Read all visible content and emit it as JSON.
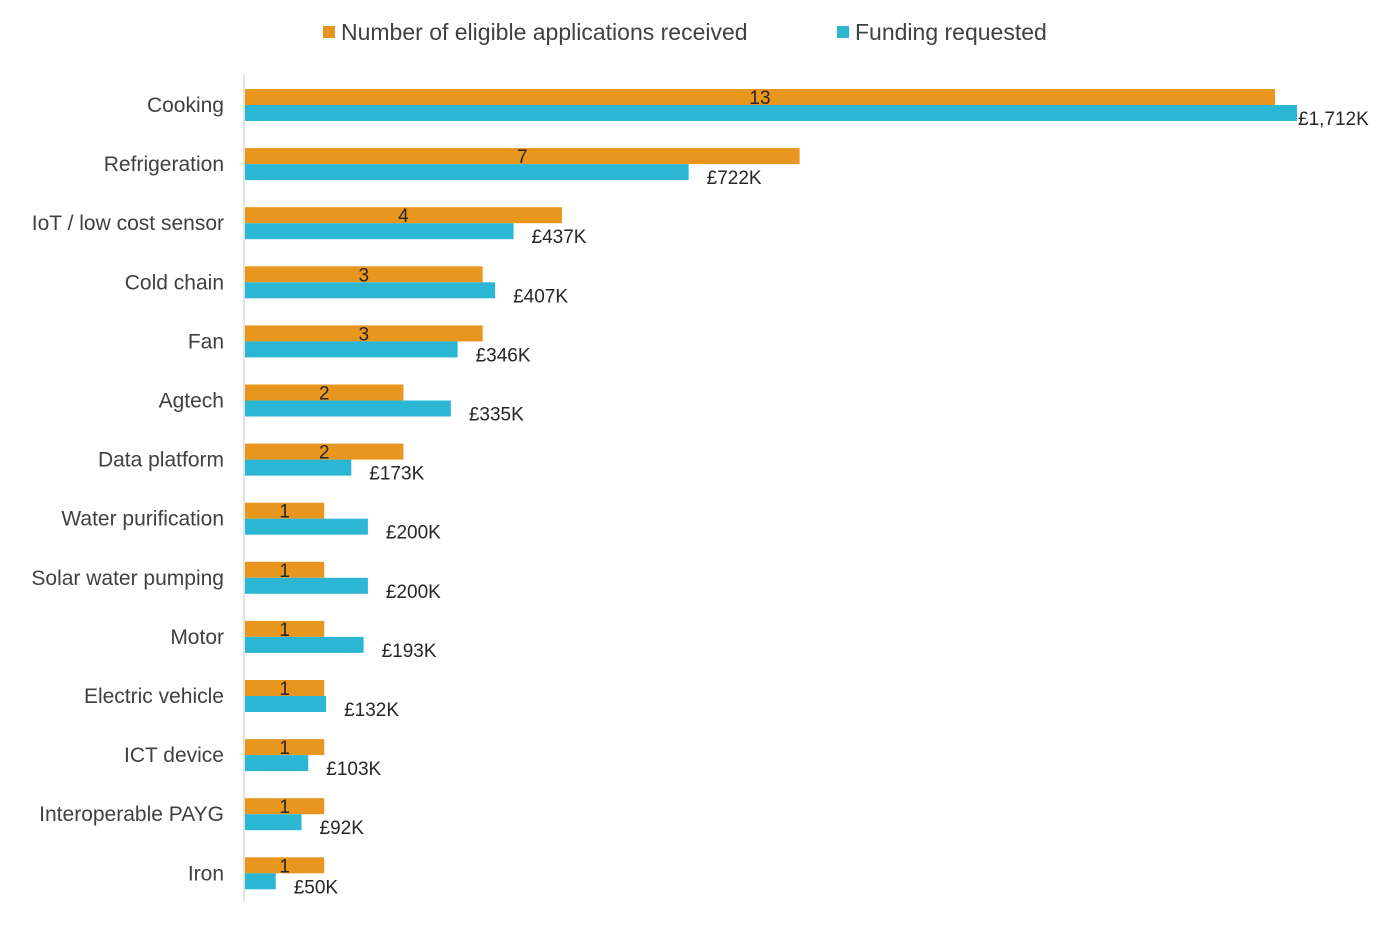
{
  "chart_data": {
    "type": "bar",
    "orientation": "horizontal",
    "categories": [
      "Cooking",
      "Refrigeration",
      "IoT / low cost sensor",
      "Cold chain",
      "Fan",
      "Agtech",
      "Data platform",
      "Water purification",
      "Solar water pumping",
      "Motor",
      "Electric vehicle",
      "ICT device",
      "Interoperable PAYG",
      "Iron"
    ],
    "series": [
      {
        "name": "Number of eligible applications received",
        "color": "#E8961E",
        "values": [
          13,
          7,
          4,
          3,
          3,
          2,
          2,
          1,
          1,
          1,
          1,
          1,
          1,
          1
        ],
        "labels": [
          "13",
          "7",
          "4",
          "3",
          "3",
          "2",
          "2",
          "1",
          "1",
          "1",
          "1",
          "1",
          "1",
          "1"
        ]
      },
      {
        "name": "Funding requested",
        "color": "#2BB6D3",
        "values": [
          1712,
          722,
          437,
          407,
          346,
          335,
          173,
          200,
          200,
          193,
          132,
          103,
          92,
          50
        ],
        "labels": [
          "£1,712K",
          "£722K",
          "£437K",
          "£407K",
          "£346K",
          "£335K",
          "£173K",
          "£200K",
          "£200K",
          "£193K",
          "£132K",
          "£103K",
          "£92K",
          "£50K"
        ]
      }
    ],
    "legend_position": "top",
    "grid": false,
    "axis_line_color": "#D9D9D9"
  }
}
